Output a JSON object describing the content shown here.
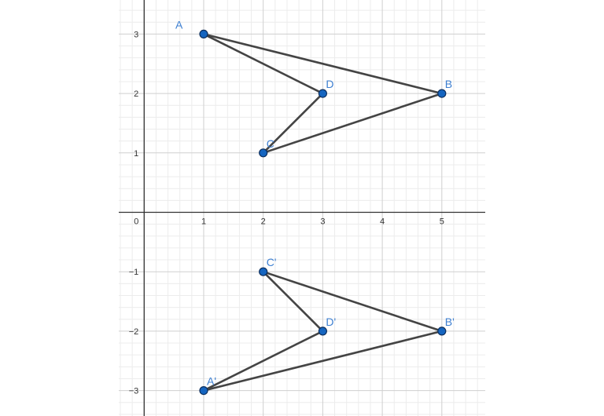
{
  "view": {
    "xrange": [
      -0.42,
      5.7
    ],
    "yrange": [
      -3.5,
      3.57
    ],
    "grid_major_step": 1,
    "grid_minor_divisions": 5,
    "x_ticks": [
      "0",
      "1",
      "2",
      "3",
      "4",
      "5"
    ],
    "y_ticks": [
      {
        "value": 3,
        "label": "3"
      },
      {
        "value": 2,
        "label": "2"
      },
      {
        "value": 1,
        "label": "1"
      },
      {
        "value": -1,
        "label": "−1"
      },
      {
        "value": -2,
        "label": "−2"
      },
      {
        "value": -3,
        "label": "−3"
      }
    ]
  },
  "colors": {
    "point_fill": "#1565c0",
    "point_stroke": "#0d2f5e",
    "label": "#3d7fd1",
    "segment": "#444444",
    "axis": "#333333",
    "grid_major": "#cfcfcf",
    "grid_minor": "#ececec"
  },
  "points": [
    {
      "name": "A",
      "x": 1,
      "y": 3,
      "label_pos": "upper-left"
    },
    {
      "name": "B",
      "x": 5,
      "y": 2,
      "label_pos": "upper-right"
    },
    {
      "name": "C",
      "x": 2,
      "y": 1,
      "label_pos": "upper-right"
    },
    {
      "name": "D",
      "x": 3,
      "y": 2,
      "label_pos": "upper-right"
    },
    {
      "name": "A'",
      "x": 1,
      "y": -3,
      "label_pos": "upper-right"
    },
    {
      "name": "B'",
      "x": 5,
      "y": -2,
      "label_pos": "upper-right"
    },
    {
      "name": "C'",
      "x": 2,
      "y": -1,
      "label_pos": "upper-right"
    },
    {
      "name": "D'",
      "x": 3,
      "y": -2,
      "label_pos": "upper-right"
    }
  ],
  "segments": [
    [
      "A",
      "B"
    ],
    [
      "A",
      "D"
    ],
    [
      "D",
      "C"
    ],
    [
      "C",
      "B"
    ],
    [
      "C'",
      "B'"
    ],
    [
      "C'",
      "D'"
    ],
    [
      "D'",
      "A'"
    ],
    [
      "A'",
      "B'"
    ]
  ]
}
